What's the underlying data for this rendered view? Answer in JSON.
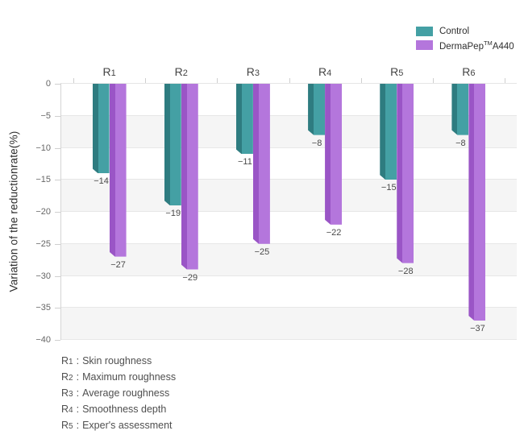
{
  "chart_data": {
    "type": "bar",
    "orientation": "vertical-negative",
    "categories": [
      "R1",
      "R2",
      "R3",
      "R4",
      "R5",
      "R6"
    ],
    "series": [
      {
        "name": "Control",
        "color": "#44a0a4",
        "color_dark": "#2e7c80",
        "values": [
          -14,
          -19,
          -11,
          -8,
          -15,
          -8
        ]
      },
      {
        "name": "DermaPep™A440",
        "color": "#b476dc",
        "color_dark": "#9a55c6",
        "values": [
          -27,
          -29,
          -25,
          -22,
          -28,
          -37
        ]
      }
    ],
    "title": "",
    "xlabel": "",
    "ylabel": "Variation of the reductionrate(%)",
    "ylim": [
      -40,
      0
    ],
    "yticks": [
      0,
      -5,
      -10,
      -15,
      -20,
      -25,
      -30,
      -35,
      -40
    ],
    "grid": true,
    "band_fill": "#f5f5f5",
    "grid_color": "#e7e7e7",
    "axis_color": "#d5d5d5",
    "legend_position": "top-right"
  },
  "legend": {
    "items": [
      {
        "text": "Control",
        "sup": "",
        "rest": ""
      },
      {
        "text": "DermaPep",
        "sup": "TM",
        "rest": "A440"
      }
    ]
  },
  "footnotes": {
    "separator": ":",
    "items": [
      {
        "id": "R1",
        "desc": "Skin roughness"
      },
      {
        "id": "R2",
        "desc": "Maximum roughness"
      },
      {
        "id": "R3",
        "desc": "Average roughness"
      },
      {
        "id": "R4",
        "desc": "Smoothness depth"
      },
      {
        "id": "R5",
        "desc": "Exper's assessment"
      }
    ]
  }
}
